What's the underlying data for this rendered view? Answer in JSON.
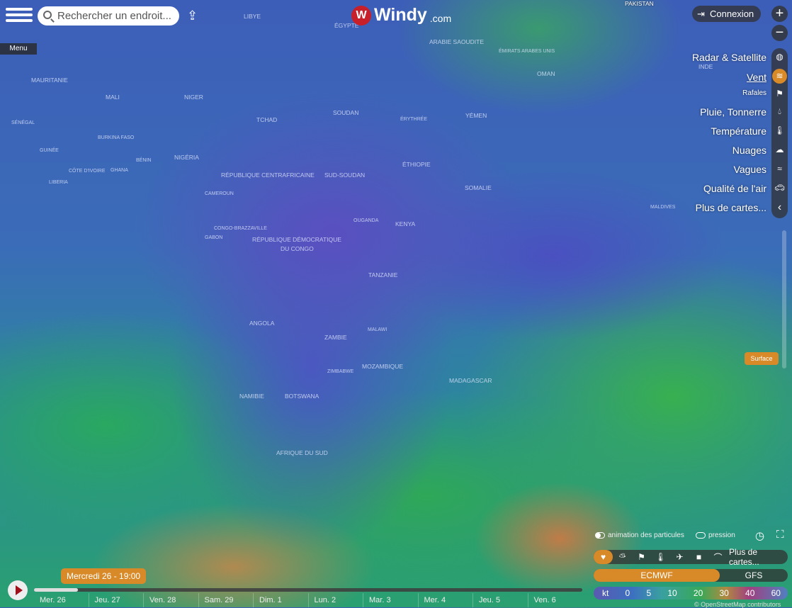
{
  "header": {
    "menu_label": "Menu",
    "search_placeholder": "Rechercher un endroit...",
    "logo_text": "Windy",
    "logo_suffix": ".com",
    "login_label": "Connexion",
    "zoom_in": "+",
    "zoom_out": "−"
  },
  "map": {
    "labels": [
      "LIBYE",
      "ÉGYPTE",
      "ARABIE SAOUDITE",
      "ÉMIRATS ARABES UNIS",
      "OMAN",
      "INDE",
      "MAURITANIE",
      "MALI",
      "NIGER",
      "TCHAD",
      "SOUDAN",
      "ÉRYTHRÉE",
      "YÉMEN",
      "SÉNÉGAL",
      "BURKINA FASO",
      "GUINÉE",
      "CÔTE D'IVOIRE",
      "GHANA",
      "BÉNIN",
      "NIGÉRIA",
      "LIBERIA",
      "RÉPUBLIQUE CENTRAFRICAINE",
      "SUD-SOUDAN",
      "ÉTHIOPIE",
      "SOMALIE",
      "CAMEROUN",
      "GABON",
      "CONGO-BRAZZAVILLE",
      "RÉPUBLIQUE DÉMOCRATIQUE",
      "DU CONGO",
      "OUGANDA",
      "KENYA",
      "TANZANIE",
      "MALDIVES",
      "ANGOLA",
      "ZAMBIE",
      "MALAWI",
      "ZIMBABWE",
      "MOZAMBIQUE",
      "MADAGASCAR",
      "NAMIBIE",
      "BOTSWANA",
      "AFRIQUE DU SUD",
      "PAKISTAN"
    ]
  },
  "layers": [
    {
      "label": "Radar & Satellite",
      "icon": "globe-icon"
    },
    {
      "label": "Vent",
      "icon": "wind-icon",
      "active": true
    },
    {
      "label": "Rafales",
      "icon": "gust-flag-icon"
    },
    {
      "label": "Pluie, Tonnerre",
      "icon": "rain-drop-icon"
    },
    {
      "label": "Température",
      "icon": "thermometer-icon"
    },
    {
      "label": "Nuages",
      "icon": "cloud-icon"
    },
    {
      "label": "Vagues",
      "icon": "waves-icon"
    },
    {
      "label": "Qualité de l'air",
      "icon": "car-icon"
    },
    {
      "label": "Plus de cartes...",
      "icon": "chevron-left-icon"
    }
  ],
  "altitude_label": "Surface",
  "controls": {
    "particles_label": "animation des particules",
    "particles_on": true,
    "pressure_label": "pression",
    "pressure_on": false,
    "more_maps": "Plus de cartes..."
  },
  "models": {
    "selected": "ECMWF",
    "options": [
      "ECMWF",
      "GFS"
    ]
  },
  "legend": {
    "unit": "kt",
    "values": [
      "0",
      "5",
      "10",
      "20",
      "30",
      "40",
      "60"
    ]
  },
  "attribution": "© OpenStreetMap contributors",
  "timeline": {
    "current": "Mercredi 26 - 19:00",
    "progress": 0.08,
    "days": [
      "Mer. 26",
      "Jeu. 27",
      "Ven. 28",
      "Sam. 29",
      "Dim. 1",
      "Lun. 2",
      "Mar. 3",
      "Mer. 4",
      "Jeu. 5",
      "Ven. 6"
    ]
  },
  "colors": {
    "accent": "#d88a28",
    "logo_red": "#c8202a"
  }
}
